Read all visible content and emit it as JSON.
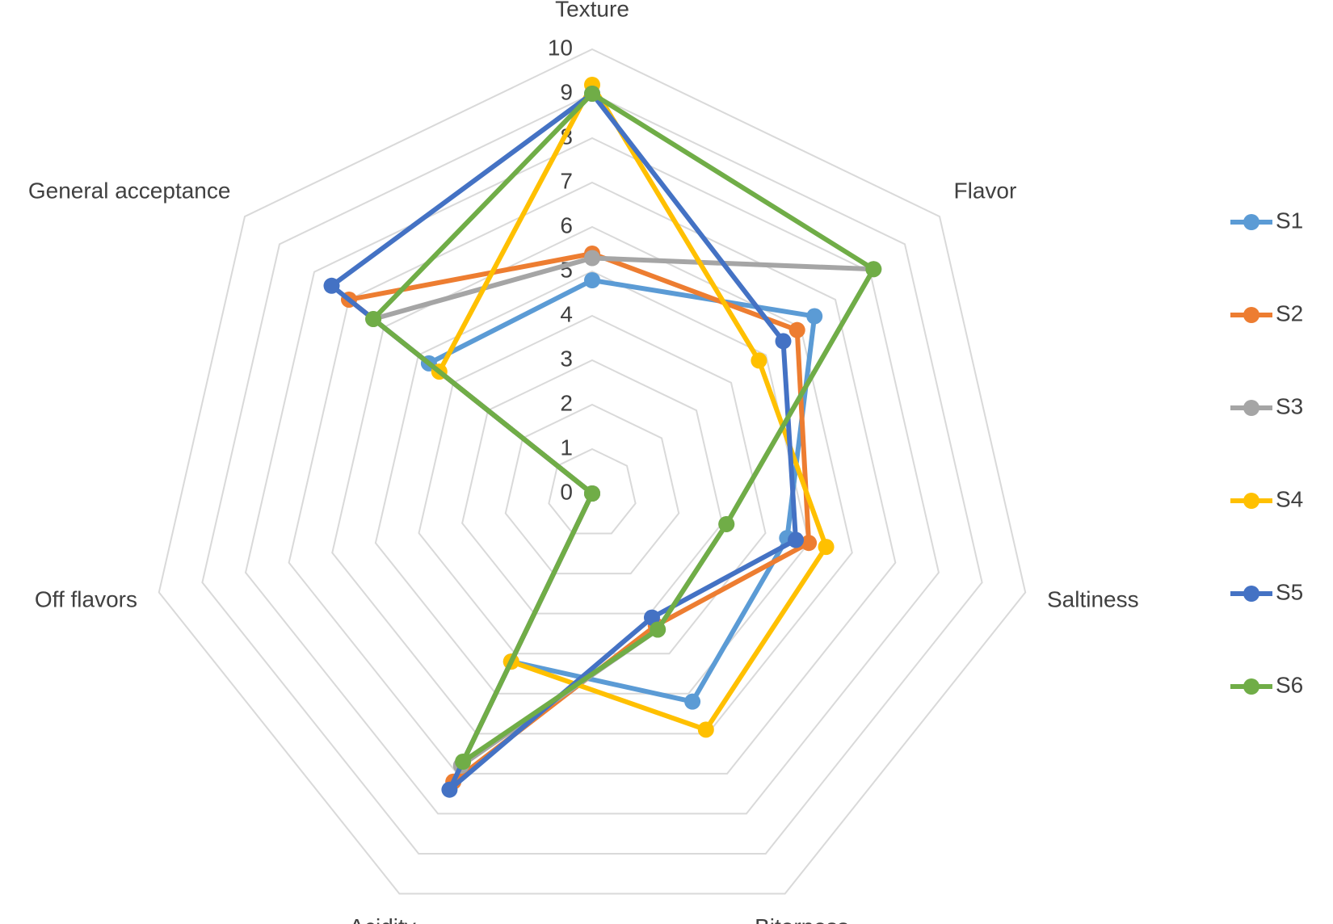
{
  "chart_data": {
    "type": "radar",
    "categories": [
      "Texture",
      "Flavor",
      "Saltiness",
      "Biterness",
      "Acidity",
      "Off flavors",
      "General acceptance"
    ],
    "series": [
      {
        "name": "S1",
        "color": "#5b9bd5",
        "values": [
          4.8,
          6.4,
          4.5,
          5.2,
          4.2,
          0,
          4.7
        ]
      },
      {
        "name": "S2",
        "color": "#ed7d31",
        "values": [
          5.4,
          5.9,
          5.0,
          3.3,
          7.2,
          0,
          7.0
        ]
      },
      {
        "name": "S3",
        "color": "#a5a5a5",
        "values": [
          5.3,
          8.1,
          3.1,
          3.4,
          6.8,
          0,
          6.3
        ]
      },
      {
        "name": "S4",
        "color": "#ffc000",
        "values": [
          9.2,
          4.8,
          5.4,
          5.9,
          4.2,
          0,
          4.4
        ]
      },
      {
        "name": "S5",
        "color": "#4472c4",
        "values": [
          9.0,
          5.5,
          4.7,
          3.1,
          7.4,
          0,
          7.5
        ]
      },
      {
        "name": "S6",
        "color": "#70ad47",
        "values": [
          9.0,
          8.1,
          3.1,
          3.4,
          6.7,
          0,
          6.3
        ]
      }
    ],
    "ylim": [
      0,
      10
    ],
    "yticks": [
      0,
      1,
      2,
      3,
      4,
      5,
      6,
      7,
      8,
      9,
      10
    ],
    "grid": true,
    "legend_position": "right"
  }
}
